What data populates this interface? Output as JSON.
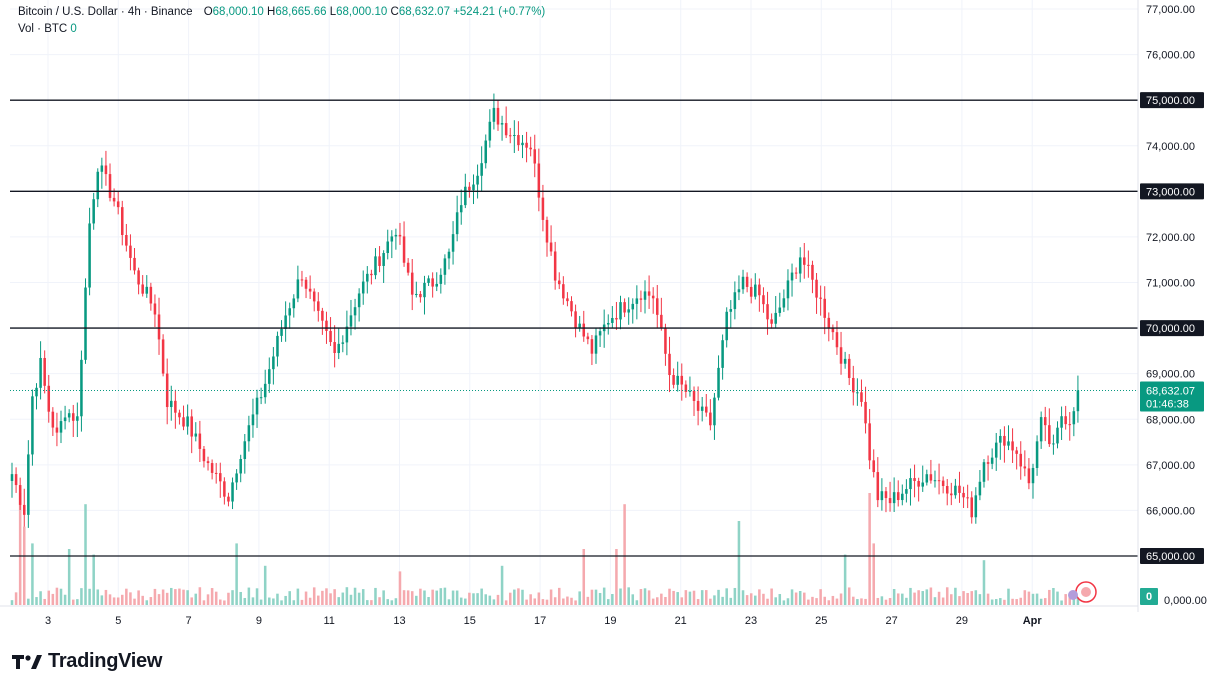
{
  "header": {
    "symbol": "Bitcoin / U.S. Dollar · 4h · Binance",
    "open_label": "O",
    "open": "68,000.10",
    "high_label": "H",
    "high": "68,665.66",
    "low_label": "L",
    "low": "68,000.10",
    "close_label": "C",
    "close": "68,632.07",
    "change": "+524.21 (+0.77%)",
    "vol_label": "Vol · BTC",
    "vol_value": "0"
  },
  "brand": {
    "name": "TradingView"
  },
  "colors": {
    "up": "#089981",
    "down": "#f23645",
    "up_vol": "#8fd3c6",
    "down_vol": "#f5a9ae",
    "grid": "#f0f3fa"
  },
  "price_axis": {
    "ticks": [
      "77,000.00",
      "76,000.00",
      "75,000.00",
      "74,000.00",
      "73,000.00",
      "72,000.00",
      "71,000.00",
      "70,000.00",
      "69,000.00",
      "68,000.00",
      "67,000.00",
      "66,000.00",
      "65,000.00"
    ],
    "bottom_label": "0,000.00",
    "last_price": "68,632.07",
    "countdown": "01:46:38",
    "volume_badge": "0"
  },
  "date_axis": {
    "labels": [
      "3",
      "5",
      "7",
      "9",
      "11",
      "13",
      "15",
      "17",
      "19",
      "21",
      "23",
      "25",
      "27",
      "29",
      "Apr"
    ]
  },
  "chart_data": {
    "type": "candlestick",
    "title": "Bitcoin / U.S. Dollar · 4h · Binance",
    "ylim": [
      64300,
      77200
    ],
    "x_categories": [
      "3",
      "5",
      "7",
      "9",
      "11",
      "13",
      "15",
      "17",
      "19",
      "21",
      "23",
      "25",
      "27",
      "29",
      "Apr"
    ],
    "horizontal_levels": [
      75000,
      73000,
      70000,
      65000
    ],
    "last_price": 68632.07,
    "waypoints": [
      [
        0,
        66800
      ],
      [
        3,
        66000
      ],
      [
        5,
        68500
      ],
      [
        7,
        69200
      ],
      [
        9,
        68200
      ],
      [
        11,
        67600
      ],
      [
        13,
        68200
      ],
      [
        16,
        68000
      ],
      [
        19,
        72300
      ],
      [
        21,
        73600
      ],
      [
        25,
        72800
      ],
      [
        30,
        71200
      ],
      [
        35,
        70400
      ],
      [
        38,
        68400
      ],
      [
        43,
        67900
      ],
      [
        48,
        67000
      ],
      [
        53,
        66300
      ],
      [
        56,
        67300
      ],
      [
        62,
        68800
      ],
      [
        67,
        70300
      ],
      [
        71,
        71200
      ],
      [
        75,
        70200
      ],
      [
        79,
        69400
      ],
      [
        85,
        70800
      ],
      [
        91,
        71700
      ],
      [
        94,
        72200
      ],
      [
        98,
        70700
      ],
      [
        103,
        71000
      ],
      [
        107,
        71600
      ],
      [
        110,
        72800
      ],
      [
        114,
        73500
      ],
      [
        118,
        74700
      ],
      [
        122,
        74300
      ],
      [
        127,
        74000
      ],
      [
        130,
        72500
      ],
      [
        133,
        71200
      ],
      [
        136,
        70600
      ],
      [
        139,
        70000
      ],
      [
        142,
        69500
      ],
      [
        146,
        70200
      ],
      [
        150,
        70500
      ],
      [
        154,
        70800
      ],
      [
        157,
        70700
      ],
      [
        161,
        69000
      ],
      [
        165,
        68600
      ],
      [
        168,
        68200
      ],
      [
        171,
        67900
      ],
      [
        175,
        70200
      ],
      [
        179,
        71000
      ],
      [
        183,
        70700
      ],
      [
        186,
        70000
      ],
      [
        190,
        70900
      ],
      [
        193,
        71600
      ],
      [
        197,
        70800
      ],
      [
        201,
        69900
      ],
      [
        205,
        68900
      ],
      [
        208,
        68500
      ],
      [
        210,
        67200
      ],
      [
        212,
        66300
      ],
      [
        215,
        66200
      ],
      [
        219,
        66500
      ],
      [
        224,
        66800
      ],
      [
        228,
        66600
      ],
      [
        232,
        66400
      ],
      [
        235,
        66000
      ],
      [
        238,
        67100
      ],
      [
        243,
        67600
      ],
      [
        246,
        67300
      ],
      [
        249,
        66600
      ],
      [
        252,
        67900
      ],
      [
        255,
        67300
      ],
      [
        257,
        68100
      ],
      [
        259,
        68000
      ],
      [
        261,
        68632
      ]
    ],
    "candle_count": 262,
    "volume": {
      "note": "volume bars scaled to panel",
      "spikes": [
        [
          2,
          1.0
        ],
        [
          3,
          0.7
        ],
        [
          5,
          0.55
        ],
        [
          14,
          0.5
        ],
        [
          18,
          0.9
        ],
        [
          20,
          0.45
        ],
        [
          55,
          0.55
        ],
        [
          62,
          0.35
        ],
        [
          95,
          0.3
        ],
        [
          120,
          0.35
        ],
        [
          140,
          0.5
        ],
        [
          148,
          0.5
        ],
        [
          150,
          0.9
        ],
        [
          178,
          0.75
        ],
        [
          204,
          0.45
        ],
        [
          210,
          1.0
        ],
        [
          211,
          0.55
        ],
        [
          238,
          0.4
        ]
      ]
    }
  }
}
